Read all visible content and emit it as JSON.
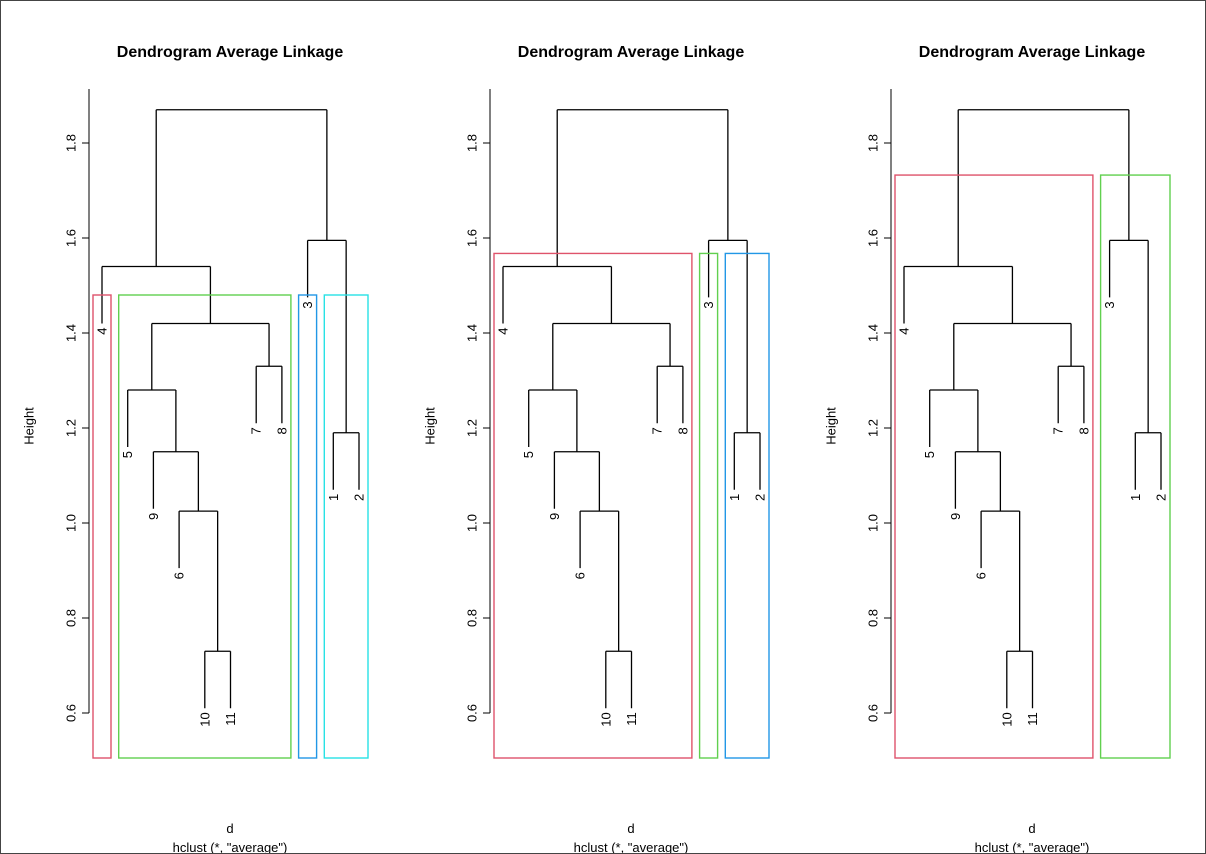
{
  "chart_data": [
    {
      "type": "dendrogram",
      "title": "Dendrogram Average Linkage",
      "ylabel": "Height",
      "xlabel": "d",
      "sub": "hclust (*, \"average\")",
      "ylim": [
        0.5,
        1.9
      ],
      "yticks": [
        "0.6",
        "0.8",
        "1.0",
        "1.2",
        "1.4",
        "1.6",
        "1.8"
      ],
      "leaf_order": [
        "4",
        "5",
        "9",
        "6",
        "10",
        "11",
        "7",
        "8",
        "3",
        "1",
        "2"
      ],
      "merges": [
        {
          "members": [
            "10",
            "11"
          ],
          "height": 0.73
        },
        {
          "members": [
            "6",
            "10",
            "11"
          ],
          "height": 1.025
        },
        {
          "members": [
            "9",
            "6",
            "10",
            "11"
          ],
          "height": 1.15
        },
        {
          "members": [
            "1",
            "2"
          ],
          "height": 1.19
        },
        {
          "members": [
            "5",
            "9",
            "6",
            "10",
            "11"
          ],
          "height": 1.28
        },
        {
          "members": [
            "7",
            "8"
          ],
          "height": 1.33
        },
        {
          "members": [
            "5",
            "9",
            "6",
            "10",
            "11",
            "7",
            "8"
          ],
          "height": 1.42
        },
        {
          "members": [
            "4",
            "5",
            "9",
            "6",
            "10",
            "11",
            "7",
            "8"
          ],
          "height": 1.54
        },
        {
          "members": [
            "3",
            "1",
            "2"
          ],
          "height": 1.595
        },
        {
          "members": [
            "4",
            "5",
            "9",
            "6",
            "10",
            "11",
            "7",
            "8",
            "3",
            "1",
            "2"
          ],
          "height": 1.87
        }
      ],
      "rect_clusters": [
        {
          "members": [
            "4"
          ],
          "color": "#DF536B"
        },
        {
          "members": [
            "5",
            "9",
            "6",
            "10",
            "11",
            "7",
            "8"
          ],
          "color": "#61D04F"
        },
        {
          "members": [
            "3"
          ],
          "color": "#2297E6"
        },
        {
          "members": [
            "1",
            "2"
          ],
          "color": "#28E2E5"
        }
      ]
    },
    {
      "type": "dendrogram",
      "title": "Dendrogram Average Linkage",
      "ylabel": "Height",
      "xlabel": "d",
      "sub": "hclust (*, \"average\")",
      "ylim": [
        0.5,
        1.9
      ],
      "yticks": [
        "0.6",
        "0.8",
        "1.0",
        "1.2",
        "1.4",
        "1.6",
        "1.8"
      ],
      "leaf_order": [
        "4",
        "5",
        "9",
        "6",
        "10",
        "11",
        "7",
        "8",
        "3",
        "1",
        "2"
      ],
      "merges": [
        {
          "members": [
            "10",
            "11"
          ],
          "height": 0.73
        },
        {
          "members": [
            "6",
            "10",
            "11"
          ],
          "height": 1.025
        },
        {
          "members": [
            "9",
            "6",
            "10",
            "11"
          ],
          "height": 1.15
        },
        {
          "members": [
            "1",
            "2"
          ],
          "height": 1.19
        },
        {
          "members": [
            "5",
            "9",
            "6",
            "10",
            "11"
          ],
          "height": 1.28
        },
        {
          "members": [
            "7",
            "8"
          ],
          "height": 1.33
        },
        {
          "members": [
            "5",
            "9",
            "6",
            "10",
            "11",
            "7",
            "8"
          ],
          "height": 1.42
        },
        {
          "members": [
            "4",
            "5",
            "9",
            "6",
            "10",
            "11",
            "7",
            "8"
          ],
          "height": 1.54
        },
        {
          "members": [
            "3",
            "1",
            "2"
          ],
          "height": 1.595
        },
        {
          "members": [
            "4",
            "5",
            "9",
            "6",
            "10",
            "11",
            "7",
            "8",
            "3",
            "1",
            "2"
          ],
          "height": 1.87
        }
      ],
      "rect_clusters": [
        {
          "members": [
            "4",
            "5",
            "9",
            "6",
            "10",
            "11",
            "7",
            "8"
          ],
          "color": "#DF536B"
        },
        {
          "members": [
            "3"
          ],
          "color": "#61D04F"
        },
        {
          "members": [
            "1",
            "2"
          ],
          "color": "#2297E6"
        }
      ]
    },
    {
      "type": "dendrogram",
      "title": "Dendrogram Average Linkage",
      "ylabel": "Height",
      "xlabel": "d",
      "sub": "hclust (*, \"average\")",
      "ylim": [
        0.5,
        1.9
      ],
      "yticks": [
        "0.6",
        "0.8",
        "1.0",
        "1.2",
        "1.4",
        "1.6",
        "1.8"
      ],
      "leaf_order": [
        "4",
        "5",
        "9",
        "6",
        "10",
        "11",
        "7",
        "8",
        "3",
        "1",
        "2"
      ],
      "merges": [
        {
          "members": [
            "10",
            "11"
          ],
          "height": 0.73
        },
        {
          "members": [
            "6",
            "10",
            "11"
          ],
          "height": 1.025
        },
        {
          "members": [
            "9",
            "6",
            "10",
            "11"
          ],
          "height": 1.15
        },
        {
          "members": [
            "1",
            "2"
          ],
          "height": 1.19
        },
        {
          "members": [
            "5",
            "9",
            "6",
            "10",
            "11"
          ],
          "height": 1.28
        },
        {
          "members": [
            "7",
            "8"
          ],
          "height": 1.33
        },
        {
          "members": [
            "5",
            "9",
            "6",
            "10",
            "11",
            "7",
            "8"
          ],
          "height": 1.42
        },
        {
          "members": [
            "4",
            "5",
            "9",
            "6",
            "10",
            "11",
            "7",
            "8"
          ],
          "height": 1.54
        },
        {
          "members": [
            "3",
            "1",
            "2"
          ],
          "height": 1.595
        },
        {
          "members": [
            "4",
            "5",
            "9",
            "6",
            "10",
            "11",
            "7",
            "8",
            "3",
            "1",
            "2"
          ],
          "height": 1.87
        }
      ],
      "rect_clusters": [
        {
          "members": [
            "4",
            "5",
            "9",
            "6",
            "10",
            "11",
            "7",
            "8"
          ],
          "color": "#DF536B"
        },
        {
          "members": [
            "3",
            "1",
            "2"
          ],
          "color": "#61D04F"
        }
      ]
    }
  ]
}
